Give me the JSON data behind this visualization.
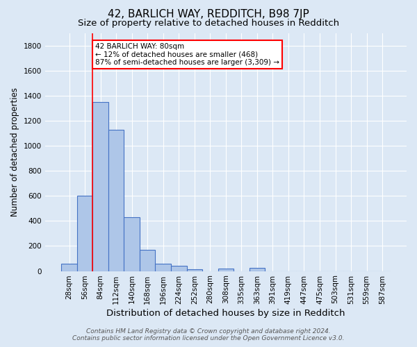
{
  "title": "42, BARLICH WAY, REDDITCH, B98 7JP",
  "subtitle": "Size of property relative to detached houses in Redditch",
  "xlabel": "Distribution of detached houses by size in Redditch",
  "ylabel": "Number of detached properties",
  "footer_line1": "Contains HM Land Registry data © Crown copyright and database right 2024.",
  "footer_line2": "Contains public sector information licensed under the Open Government Licence v3.0.",
  "bin_labels": [
    "28sqm",
    "56sqm",
    "84sqm",
    "112sqm",
    "140sqm",
    "168sqm",
    "196sqm",
    "224sqm",
    "252sqm",
    "280sqm",
    "308sqm",
    "335sqm",
    "363sqm",
    "391sqm",
    "419sqm",
    "447sqm",
    "475sqm",
    "503sqm",
    "531sqm",
    "559sqm",
    "587sqm"
  ],
  "bar_heights": [
    60,
    600,
    1350,
    1130,
    430,
    170,
    60,
    40,
    15,
    0,
    20,
    0,
    25,
    0,
    0,
    0,
    0,
    0,
    0,
    0,
    0
  ],
  "bar_color": "#aec6e8",
  "bar_edge_color": "#4472c4",
  "annotation_text": "42 BARLICH WAY: 80sqm\n← 12% of detached houses are smaller (468)\n87% of semi-detached houses are larger (3,309) →",
  "annotation_box_color": "white",
  "annotation_box_edge_color": "red",
  "red_line_bin_idx": 2,
  "ylim": [
    0,
    1900
  ],
  "yticks": [
    0,
    200,
    400,
    600,
    800,
    1000,
    1200,
    1400,
    1600,
    1800
  ],
  "bg_color": "#dce8f5",
  "grid_color": "white",
  "title_fontsize": 11,
  "subtitle_fontsize": 9.5,
  "xlabel_fontsize": 9.5,
  "ylabel_fontsize": 8.5,
  "tick_fontsize": 7.5,
  "footer_fontsize": 6.5,
  "annot_fontsize": 7.5
}
